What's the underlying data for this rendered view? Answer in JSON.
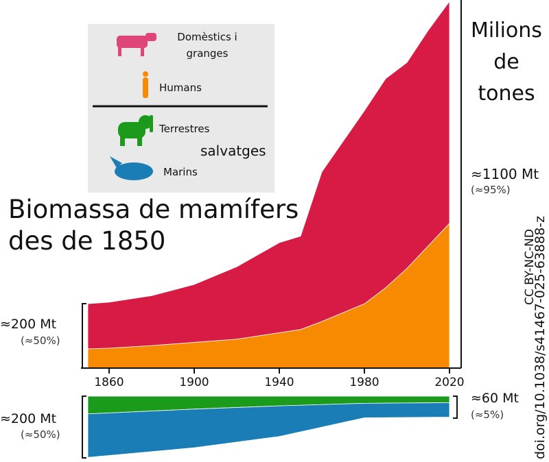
{
  "chart_data": [
    {
      "type": "area",
      "stacked": true,
      "title": "Biomassa de mamífers des de 1850",
      "ylabel": "Milions de tones",
      "x": [
        1850,
        1860,
        1880,
        1900,
        1920,
        1940,
        1950,
        1960,
        1980,
        1990,
        2000,
        2010,
        2020
      ],
      "xlim": [
        1850,
        2020
      ],
      "xticks": [
        1860,
        1900,
        1940,
        1980,
        2020
      ],
      "ylim": [
        0,
        1140
      ],
      "series": [
        {
          "name": "Humans",
          "color": "#f78a00",
          "values": [
            60,
            62,
            70,
            80,
            90,
            110,
            120,
            145,
            200,
            250,
            310,
            380,
            450
          ]
        },
        {
          "name": "Domèstics i granges",
          "color": "#d81b45",
          "values": [
            140,
            143,
            155,
            180,
            225,
            280,
            290,
            465,
            600,
            650,
            640,
            670,
            690
          ]
        }
      ],
      "annotations": [
        "≈200 Mt",
        "(≈50%)",
        "≈1100 Mt",
        "(≈95%)"
      ]
    },
    {
      "type": "area",
      "stacked": true,
      "inverted": true,
      "legend_group_label": "salvatges",
      "x": [
        1850,
        1900,
        1940,
        1960,
        1980,
        2020
      ],
      "xlim": [
        1850,
        2020
      ],
      "ylim": [
        0,
        200
      ],
      "series": [
        {
          "name": "Terrestres",
          "color": "#1c9a1c",
          "values": [
            55,
            40,
            30,
            26,
            22,
            20
          ]
        },
        {
          "name": "Marins",
          "color": "#1a7db5",
          "values": [
            135,
            120,
            95,
            70,
            45,
            45
          ]
        }
      ],
      "annotations": [
        "≈200 Mt",
        "(≈50%)",
        "≈60 Mt",
        "(≈5%)"
      ]
    }
  ],
  "license": "CC BY-NC-ND",
  "source": "doi.org/10.1038/s41467-025-63888-z"
}
